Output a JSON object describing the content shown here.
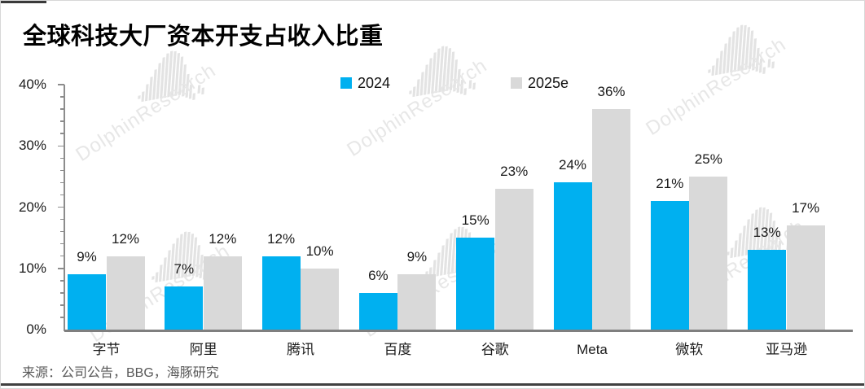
{
  "title": "全球科技大厂资本开支占收入比重",
  "source": "来源：公司公告，BBG，海豚研究",
  "watermark": {
    "text": "DolphinResearch"
  },
  "legend": [
    {
      "label": "2024",
      "color": "#00B0F0"
    },
    {
      "label": "2025e",
      "color": "#D9D9D9"
    }
  ],
  "colors": {
    "axis": "#8c8c8c",
    "x_axis": "#7f7f7f",
    "watermark_text": "#e7e7e7",
    "watermark_logo": "#e3e3e3",
    "source_text": "#595959"
  },
  "chart_data": {
    "type": "bar",
    "title": "全球科技大厂资本开支占收入比重",
    "categories": [
      "字节",
      "阿里",
      "腾讯",
      "百度",
      "谷歌",
      "Meta",
      "微软",
      "亚马逊"
    ],
    "series": [
      {
        "name": "2024",
        "color": "#00B0F0",
        "values": [
          9,
          7,
          12,
          6,
          15,
          24,
          21,
          13
        ]
      },
      {
        "name": "2025e",
        "color": "#D9D9D9",
        "values": [
          12,
          12,
          10,
          9,
          23,
          36,
          25,
          17
        ]
      }
    ],
    "value_label_suffix": "%",
    "xlabel": "",
    "ylabel": "",
    "ylim": [
      0,
      40
    ],
    "y_major_step": 10,
    "y_minor_step": 2,
    "y_tick_labels": [
      "0%",
      "10%",
      "20%",
      "30%",
      "40%"
    ],
    "grid": false,
    "legend_position": "top-center",
    "data_labels": true
  }
}
